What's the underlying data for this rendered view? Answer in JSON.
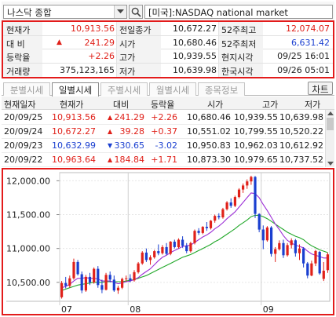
{
  "search": {
    "index_name": "나스닥 종합",
    "market_label": "[미국]:NASDAQ national market"
  },
  "quote": {
    "current_label": "현재가",
    "current_value": "10,913.56",
    "change_label": "대  비",
    "change_value": "241.29",
    "rate_label": "등락율",
    "rate_value": "+2.26",
    "volume_label": "거래량",
    "volume_value": "375,123,165",
    "prev_close_label": "전일종가",
    "prev_close_value": "10,672.27",
    "open_label": "시가",
    "open_value": "10,680.46",
    "high_label": "고가",
    "high_value": "10,939.55",
    "low_label": "저가",
    "low_value": "10,639.98",
    "w52_high_label": "52주최고",
    "w52_high_value": "12,074.07",
    "w52_low_label": "52주최저",
    "w52_low_value": "6,631.42",
    "local_time_label": "현지시각",
    "local_time_value": "09/25 16:01",
    "kr_time_label": "한국시각",
    "kr_time_value": "09/26 05:01"
  },
  "tabs": [
    "분별시세",
    "일별시세",
    "주별시세",
    "월별시세",
    "종목정보"
  ],
  "active_tab": 1,
  "chart_button": "차트",
  "daily": {
    "headers": [
      "현재일자",
      "현재가",
      "대비",
      "등락율",
      "시가",
      "고가",
      "저가"
    ],
    "rows": [
      {
        "date": "20/09/25",
        "price": "10,913.56",
        "dir": "up",
        "change": "241.29",
        "rate": "+2.26",
        "open": "10,680.46",
        "high": "10,939.55",
        "low": "10,639.98"
      },
      {
        "date": "20/09/24",
        "price": "10,672.27",
        "dir": "up",
        "change": "39.28",
        "rate": "+0.37",
        "open": "10,551.02",
        "high": "10,799.55",
        "low": "10,520.22"
      },
      {
        "date": "20/09/23",
        "price": "10,632.99",
        "dir": "down",
        "change": "330.65",
        "rate": "-3.02",
        "open": "10,950.83",
        "high": "10,962.03",
        "low": "10,612.92"
      },
      {
        "date": "20/09/22",
        "price": "10,963.64",
        "dir": "up",
        "change": "184.84",
        "rate": "+1.71",
        "open": "10,873.30",
        "high": "10,979.65",
        "low": "10,737.52"
      }
    ]
  },
  "colors": {
    "up": "#e0211a",
    "down": "#1a3fd0",
    "highlight": "#e31b1b",
    "ma_short": "#9c2fd6",
    "ma_long": "#22a82a"
  },
  "chart_data": {
    "type": "candlestick",
    "y_ticks": [
      "12,000.00",
      "11,500.00",
      "11,000.00",
      "10,500.00"
    ],
    "y_tick_values": [
      12000,
      11500,
      11000,
      10500
    ],
    "ylim": [
      10220,
      12120
    ],
    "x_labels": [
      {
        "label": "07",
        "index": 0
      },
      {
        "label": "08",
        "index": 17
      },
      {
        "label": "09",
        "index": 50
      }
    ],
    "candles": [
      [
        10280,
        10520,
        10260,
        10490
      ],
      [
        10490,
        10580,
        10410,
        10450
      ],
      [
        10450,
        10600,
        10420,
        10560
      ],
      [
        10560,
        10850,
        10540,
        10800
      ],
      [
        10800,
        10830,
        10600,
        10620
      ],
      [
        10620,
        10660,
        10340,
        10380
      ],
      [
        10380,
        10610,
        10360,
        10580
      ],
      [
        10580,
        10640,
        10460,
        10500
      ],
      [
        10500,
        10720,
        10480,
        10700
      ],
      [
        10700,
        10740,
        10420,
        10460
      ],
      [
        10460,
        10540,
        10340,
        10390
      ],
      [
        10390,
        10640,
        10380,
        10610
      ],
      [
        10610,
        10660,
        10500,
        10540
      ],
      [
        10540,
        10600,
        10360,
        10380
      ],
      [
        10380,
        10450,
        10330,
        10420
      ],
      [
        10420,
        10570,
        10400,
        10550
      ],
      [
        10550,
        10600,
        10510,
        10560
      ],
      [
        10560,
        10620,
        10500,
        10530
      ],
      [
        10530,
        10680,
        10510,
        10650
      ],
      [
        10650,
        10800,
        10630,
        10780
      ],
      [
        10780,
        10960,
        10760,
        10940
      ],
      [
        10940,
        11000,
        10800,
        10830
      ],
      [
        10830,
        10900,
        10760,
        10870
      ],
      [
        10870,
        10980,
        10850,
        10960
      ],
      [
        10960,
        11060,
        10900,
        10930
      ],
      [
        10930,
        11050,
        10910,
        11020
      ],
      [
        11020,
        11080,
        10900,
        10920
      ],
      [
        10920,
        11110,
        10900,
        11100
      ],
      [
        11100,
        11130,
        11000,
        11020
      ],
      [
        11020,
        11150,
        11000,
        11130
      ],
      [
        11130,
        11180,
        11010,
        11040
      ],
      [
        11040,
        11080,
        10930,
        10960
      ],
      [
        10960,
        11100,
        10940,
        11080
      ],
      [
        11080,
        11280,
        11060,
        11260
      ],
      [
        11260,
        11300,
        11200,
        11230
      ],
      [
        11230,
        11330,
        11210,
        11320
      ],
      [
        11320,
        11390,
        11260,
        11300
      ],
      [
        11300,
        11420,
        11280,
        11410
      ],
      [
        11410,
        11500,
        11380,
        11480
      ],
      [
        11480,
        11520,
        11430,
        11460
      ],
      [
        11460,
        11600,
        11440,
        11580
      ],
      [
        11580,
        11700,
        11560,
        11680
      ],
      [
        11680,
        11740,
        11600,
        11630
      ],
      [
        11630,
        11780,
        11610,
        11760
      ],
      [
        11760,
        11890,
        11740,
        11870
      ],
      [
        11870,
        11960,
        11820,
        11930
      ],
      [
        11930,
        12020,
        11880,
        11990
      ],
      [
        11990,
        12074,
        11940,
        12056
      ],
      [
        12056,
        12070,
        11450,
        11510
      ],
      [
        11510,
        11520,
        11240,
        11280
      ],
      [
        11280,
        11340,
        10990,
        11120
      ],
      [
        11120,
        11330,
        11100,
        11310
      ],
      [
        11310,
        11330,
        10880,
        10920
      ],
      [
        10920,
        11020,
        10800,
        10990
      ],
      [
        10990,
        11120,
        10970,
        11080
      ],
      [
        11080,
        11130,
        10860,
        10900
      ],
      [
        10900,
        11080,
        10880,
        11050
      ],
      [
        11050,
        11150,
        11000,
        11120
      ],
      [
        11120,
        11140,
        10880,
        10930
      ],
      [
        10930,
        11060,
        10830,
        11000
      ],
      [
        11000,
        11020,
        10720,
        10780
      ],
      [
        10780,
        10800,
        10560,
        10600
      ],
      [
        10600,
        10820,
        10590,
        10780
      ],
      [
        10780,
        10980,
        10740,
        10963
      ],
      [
        10950,
        10962,
        10612,
        10633
      ],
      [
        10551,
        10800,
        10520,
        10672
      ],
      [
        10680,
        10939,
        10640,
        10913
      ]
    ],
    "ma_short": [
      10420,
      10440,
      10470,
      10520,
      10560,
      10560,
      10570,
      10560,
      10560,
      10550,
      10520,
      10520,
      10520,
      10500,
      10480,
      10490,
      10510,
      10520,
      10540,
      10570,
      10620,
      10660,
      10700,
      10760,
      10820,
      10870,
      10900,
      10940,
      10970,
      11000,
      11030,
      11040,
      11050,
      11090,
      11130,
      11170,
      11200,
      11240,
      11290,
      11330,
      11380,
      11440,
      11490,
      11540,
      11610,
      11680,
      11750,
      11820,
      11810,
      11750,
      11650,
      11560,
      11460,
      11360,
      11280,
      11190,
      11120,
      11080,
      11050,
      11030,
      11010,
      10960,
      10920,
      10900,
      10880,
      10860,
      10860
    ],
    "ma_long": [
      10380,
      10400,
      10420,
      10440,
      10460,
      10470,
      10480,
      10490,
      10500,
      10500,
      10500,
      10510,
      10510,
      10510,
      10510,
      10510,
      10520,
      10530,
      10540,
      10560,
      10580,
      10600,
      10630,
      10660,
      10690,
      10720,
      10750,
      10780,
      10810,
      10840,
      10870,
      10890,
      10910,
      10940,
      10970,
      11000,
      11030,
      11060,
      11100,
      11130,
      11170,
      11210,
      11250,
      11290,
      11340,
      11380,
      11420,
      11470,
      11490,
      11490,
      11470,
      11440,
      11400,
      11360,
      11320,
      11280,
      11240,
      11210,
      11180,
      11160,
      11130,
      11080,
      11040,
      11010,
      10980,
      10960,
      10940
    ]
  }
}
